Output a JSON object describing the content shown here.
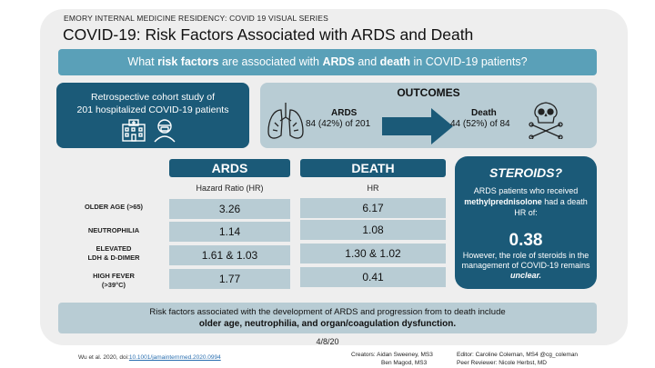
{
  "header": {
    "series": "EMORY INTERNAL MEDICINE RESIDENCY: COVID 19 VISUAL SERIES",
    "title": "COVID-19: Risk Factors Associated with ARDS and Death"
  },
  "question": {
    "part1": "What ",
    "bold1": "risk factors",
    "part2": " are associated with ",
    "bold2": "ARDS",
    "part3": " and ",
    "bold3": "death",
    "part4": " in COVID-19 patients?"
  },
  "study": {
    "line1": "Retrospective cohort study of",
    "line2": "201 hospitalized COVID-19 patients",
    "icons": [
      "hospital-icon",
      "patient-icon"
    ]
  },
  "outcomes": {
    "title": "OUTCOMES",
    "ards_label": "ARDS",
    "ards_value": "84 (42%) of 201",
    "death_label": "Death",
    "death_value": "44 (52%) of 84"
  },
  "table": {
    "col1_header": "ARDS",
    "col1_sub": "Hazard Ratio (HR)",
    "col2_header": "DEATH",
    "col2_sub": "HR",
    "rows": [
      {
        "label1": "OLDER AGE (>65)",
        "label2": "",
        "ards": "3.26",
        "death": "6.17"
      },
      {
        "label1": "NEUTROPHILIA",
        "label2": "",
        "ards": "1.14",
        "death": "1.08"
      },
      {
        "label1": "ELEVATED",
        "label2": "LDH & D-DIMER",
        "ards": "1.61 & 1.03",
        "death": "1.30 & 1.02"
      },
      {
        "label1": "HIGH FEVER",
        "label2": "(>39°C)",
        "ards": "1.77",
        "death": "0.41"
      }
    ]
  },
  "steroids": {
    "title": "STEROIDS?",
    "text1a": "ARDS patients who received ",
    "text1b": "methylprednisolone",
    "text1c": " had a death HR of:",
    "value": "0.38",
    "text2a": "However, the role of steroids in the management of COVID-19 remains ",
    "text2b": "unclear."
  },
  "summary": {
    "line1": "Risk factors associated with the development of ARDS and progression from to death include",
    "line2": "older age, neutrophilia, and organ/coagulation dysfunction."
  },
  "date": "4/8/20",
  "footer": {
    "citation": "Wu et al. 2020, doi:",
    "doi": "10.1001/jamainternmed.2020.0994",
    "creators1": "Creators: Aidan Sweeney, MS3",
    "creators2": "Ben Magod, MS3",
    "editor": "Editor: Caroline Coleman, MS4 @cg_coleman",
    "reviewer": "Peer Reviewer: Nicole Herbst, MD"
  },
  "colors": {
    "dark_blue": "#1b5a78",
    "mid_blue": "#5aa0b8",
    "light_blue": "#b8ccd4",
    "background": "#eeeeee"
  }
}
